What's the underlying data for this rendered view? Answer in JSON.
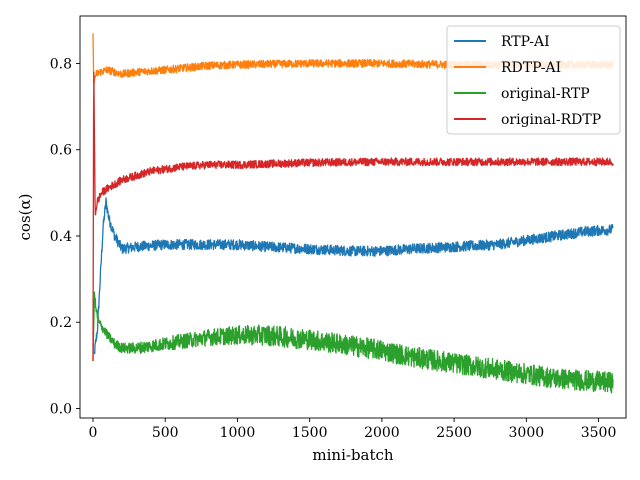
{
  "chart_data": {
    "type": "line",
    "title": "",
    "xlabel": "mini-batch",
    "ylabel": "cos(α)",
    "xlim": [
      -90,
      3690
    ],
    "ylim": [
      -0.022,
      0.91
    ],
    "xticks": [
      0,
      500,
      1000,
      1500,
      2000,
      2500,
      3000,
      3500
    ],
    "xtick_labels": [
      "0",
      "500",
      "1000",
      "1500",
      "2000",
      "2500",
      "3000",
      "3500"
    ],
    "yticks": [
      0.0,
      0.2,
      0.4,
      0.6,
      0.8
    ],
    "ytick_labels": [
      "0.0",
      "0.2",
      "0.4",
      "0.6",
      "0.8"
    ],
    "grid": false,
    "legend_position": "top-right",
    "x_max": 3600,
    "series": [
      {
        "name": "RTP-AI",
        "color": "#1f77b4",
        "noise": 0.012,
        "x": [
          0,
          10,
          30,
          50,
          70,
          90,
          110,
          150,
          200,
          300,
          500,
          800,
          1000,
          1200,
          1500,
          1800,
          2000,
          2200,
          2500,
          2800,
          3000,
          3200,
          3400,
          3600
        ],
        "y": [
          0.13,
          0.13,
          0.18,
          0.3,
          0.42,
          0.48,
          0.44,
          0.4,
          0.37,
          0.375,
          0.38,
          0.38,
          0.38,
          0.375,
          0.37,
          0.365,
          0.365,
          0.37,
          0.375,
          0.38,
          0.39,
          0.4,
          0.41,
          0.415
        ]
      },
      {
        "name": "RDTP-AI",
        "color": "#ff7f0e",
        "noise": 0.009,
        "x": [
          0,
          5,
          10,
          20,
          50,
          100,
          200,
          300,
          500,
          800,
          1000,
          1500,
          2000,
          2500,
          3000,
          3600
        ],
        "y": [
          0.87,
          0.75,
          0.76,
          0.775,
          0.78,
          0.785,
          0.775,
          0.78,
          0.785,
          0.795,
          0.797,
          0.8,
          0.8,
          0.797,
          0.797,
          0.797
        ]
      },
      {
        "name": "original-RTP",
        "color": "#2ca02c",
        "noise": 0.016,
        "x": [
          0,
          10,
          20,
          40,
          60,
          100,
          150,
          200,
          300,
          500,
          800,
          1000,
          1200,
          1500,
          1800,
          2000,
          2200,
          2500,
          2800,
          3000,
          3200,
          3400,
          3600
        ],
        "y": [
          0.11,
          0.27,
          0.23,
          0.2,
          0.19,
          0.17,
          0.15,
          0.14,
          0.14,
          0.15,
          0.165,
          0.17,
          0.17,
          0.16,
          0.145,
          0.135,
          0.12,
          0.105,
          0.09,
          0.08,
          0.07,
          0.065,
          0.06
        ]
      },
      {
        "name": "original-RDTP",
        "color": "#d62728",
        "noise": 0.009,
        "x": [
          0,
          5,
          8,
          15,
          30,
          60,
          100,
          200,
          400,
          600,
          800,
          1000,
          1500,
          2000,
          2500,
          3000,
          3600
        ],
        "y": [
          0.11,
          0.82,
          0.7,
          0.45,
          0.48,
          0.5,
          0.51,
          0.53,
          0.55,
          0.56,
          0.565,
          0.565,
          0.57,
          0.572,
          0.572,
          0.572,
          0.572
        ]
      }
    ]
  }
}
